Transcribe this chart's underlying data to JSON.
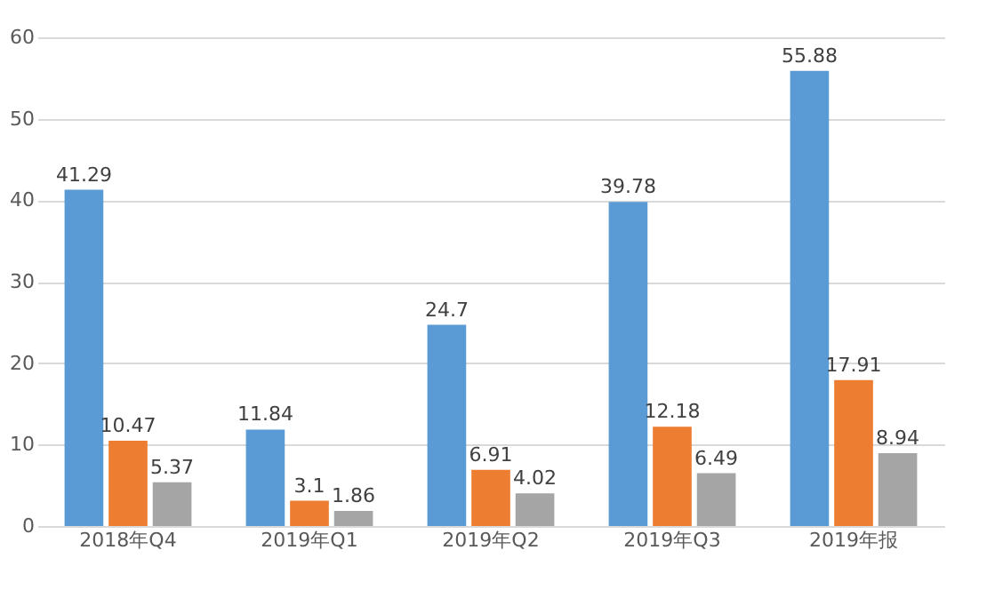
{
  "chart_data": {
    "type": "bar",
    "categories": [
      "2018年Q4",
      "2019年Q1",
      "2019年Q2",
      "2019年Q3",
      "2019年报"
    ],
    "series": [
      {
        "color": "#5b9bd5",
        "values": [
          41.29,
          11.84,
          24.7,
          39.78,
          55.88
        ]
      },
      {
        "color": "#ed7d31",
        "values": [
          10.47,
          3.1,
          6.91,
          12.18,
          17.91
        ]
      },
      {
        "color": "#a5a5a5",
        "values": [
          5.37,
          1.86,
          4.02,
          6.49,
          8.94
        ]
      }
    ],
    "ylim": [
      0,
      60
    ],
    "yticks": [
      0,
      10,
      20,
      30,
      40,
      50,
      60
    ],
    "grid": "y",
    "data_labels": true,
    "legend": false
  }
}
